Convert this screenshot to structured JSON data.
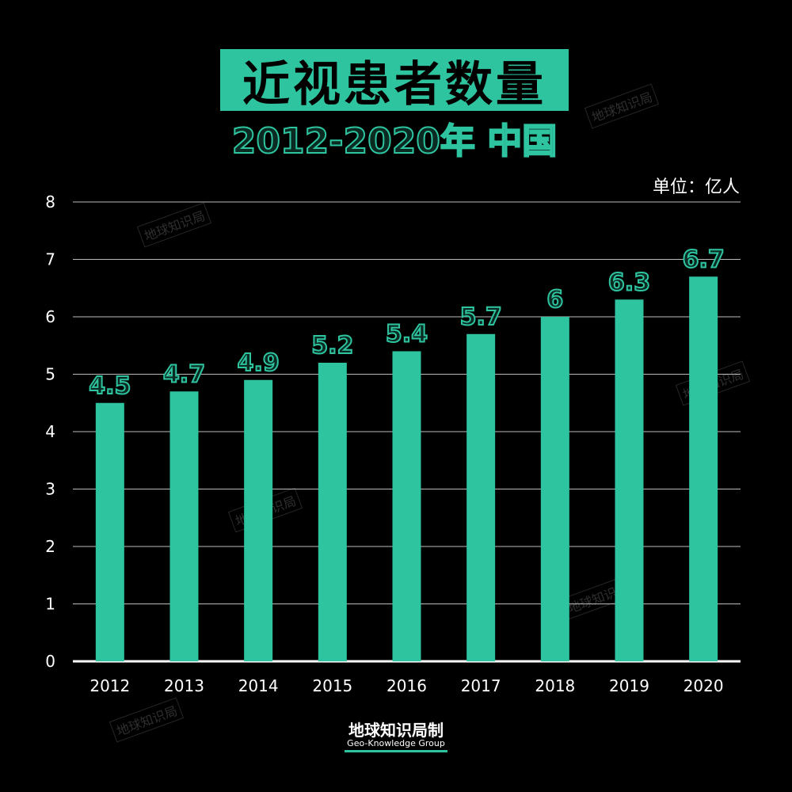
{
  "title": "近视患者数量",
  "subtitle": "2012-2020年 中国",
  "unit": "单位：亿人",
  "watermark": "地球知识局",
  "footer": {
    "brand": "地球知识局制",
    "english": "Geo-Knowledge Group"
  },
  "colors": {
    "accent": "#2ec4a0",
    "background": "#000000"
  },
  "chart_data": {
    "type": "bar",
    "categories": [
      "2012",
      "2013",
      "2014",
      "2015",
      "2016",
      "2017",
      "2018",
      "2019",
      "2020"
    ],
    "values": [
      4.5,
      4.7,
      4.9,
      5.2,
      5.4,
      5.7,
      6,
      6.3,
      6.7
    ],
    "data_labels": [
      "4.5",
      "4.7",
      "4.9",
      "5.2",
      "5.4",
      "5.7",
      "6",
      "6.3",
      "6.7"
    ],
    "ylim": [
      0,
      8
    ],
    "yticks": [
      "0",
      "1",
      "2",
      "3",
      "4",
      "5",
      "6",
      "7",
      "8"
    ],
    "grid": true
  }
}
